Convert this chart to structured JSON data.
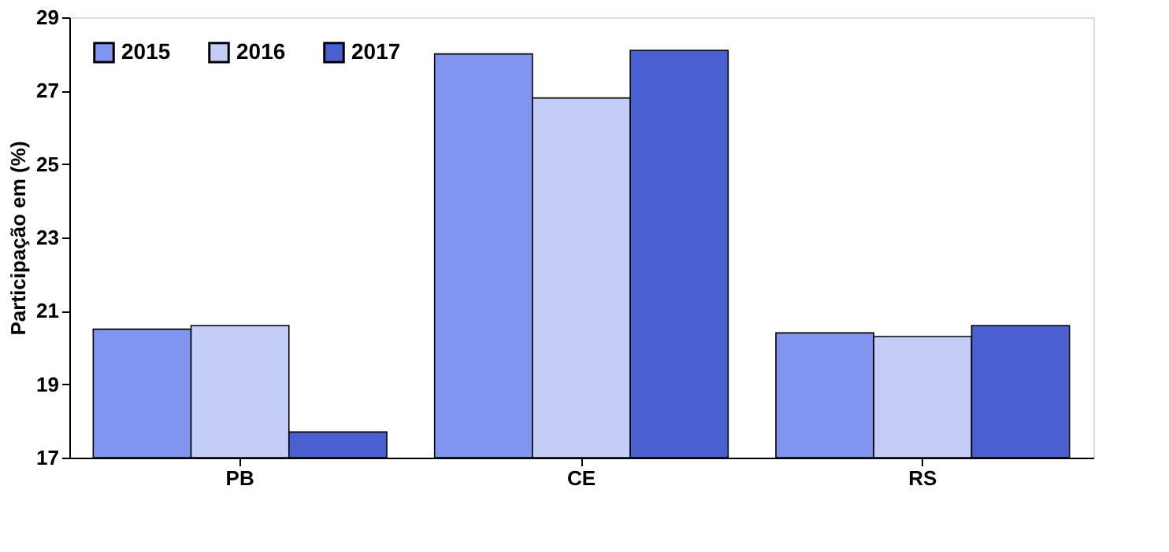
{
  "chart_data": {
    "type": "bar",
    "ylabel": "Participação em (%)",
    "categories": [
      "PB",
      "CE",
      "RS"
    ],
    "series": [
      {
        "name": "2015",
        "color": "#7f95f0",
        "values": [
          20.5,
          28.0,
          20.4
        ]
      },
      {
        "name": "2016",
        "color": "#c3cdf7",
        "values": [
          20.6,
          26.8,
          20.3
        ]
      },
      {
        "name": "2017",
        "color": "#4a5fd0",
        "values": [
          17.7,
          28.1,
          20.6
        ]
      }
    ],
    "ylim": [
      17,
      29
    ],
    "yticks": [
      17,
      19,
      21,
      23,
      25,
      27,
      29
    ],
    "grid": false,
    "legend": "top left"
  }
}
